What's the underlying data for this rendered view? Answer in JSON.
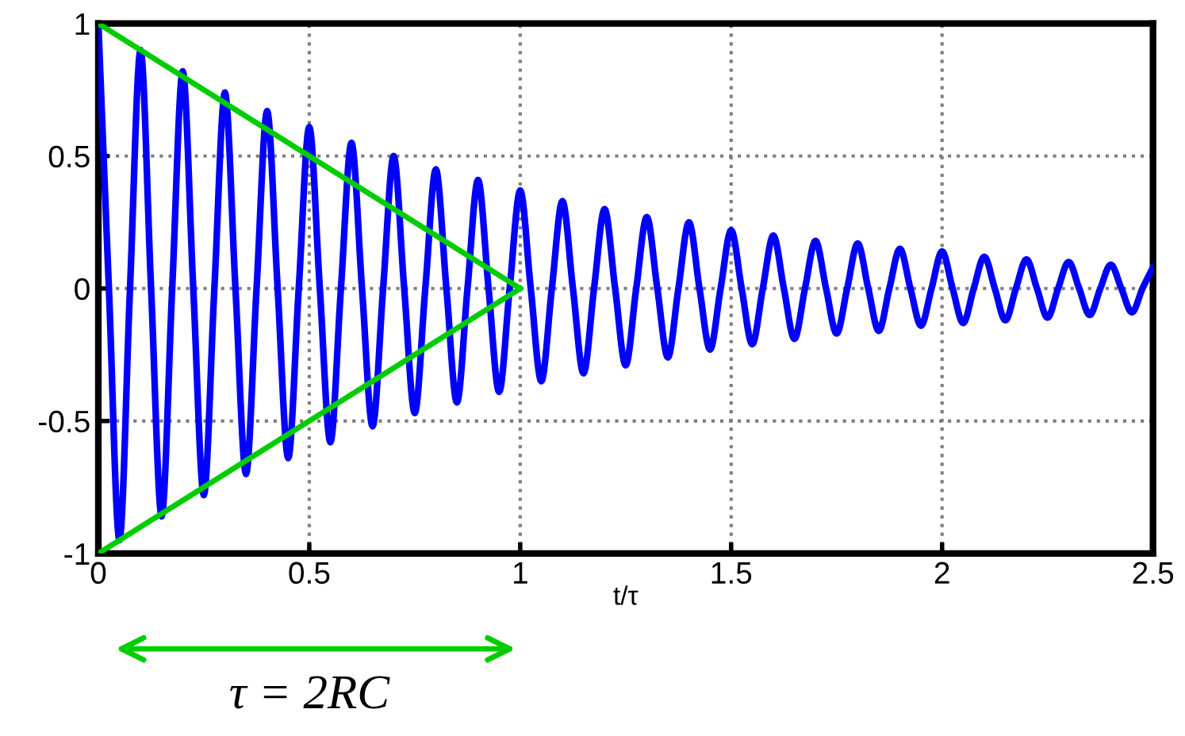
{
  "chart_data": {
    "type": "line",
    "xlabel": "t/τ",
    "annotations": [
      "τ = 2RC"
    ],
    "xlim": [
      0,
      2.5
    ],
    "ylim": [
      -1,
      1
    ],
    "xticks": [
      0,
      0.5,
      1,
      1.5,
      2,
      2.5
    ],
    "yticks": [
      -1,
      -0.5,
      0,
      0.5,
      1
    ],
    "grid": true,
    "line_style": "solid",
    "marker": "none",
    "series": [
      {
        "color": "#0000ff",
        "x": [
          0,
          0.025,
          0.05,
          0.075,
          0.1,
          0.125,
          0.15,
          0.175,
          0.2,
          0.225,
          0.25,
          0.275,
          0.3,
          0.325,
          0.35,
          0.375,
          0.4,
          0.425,
          0.45,
          0.475,
          0.5,
          0.525,
          0.55,
          0.575,
          0.6,
          0.625,
          0.65,
          0.675,
          0.7,
          0.725,
          0.75,
          0.775,
          0.8,
          0.825,
          0.85,
          0.875,
          0.9,
          0.925,
          0.95,
          0.975,
          1,
          1.025,
          1.05,
          1.075,
          1.1,
          1.125,
          1.15,
          1.175,
          1.2,
          1.225,
          1.25,
          1.275,
          1.3,
          1.325,
          1.35,
          1.375,
          1.4,
          1.425,
          1.45,
          1.475,
          1.5,
          1.525,
          1.55,
          1.575,
          1.6,
          1.625,
          1.65,
          1.675,
          1.7,
          1.725,
          1.75,
          1.775,
          1.8,
          1.825,
          1.85,
          1.875,
          1.9,
          1.925,
          1.95,
          1.975,
          2,
          2.025,
          2.05,
          2.075,
          2.1,
          2.125,
          2.15,
          2.175,
          2.2,
          2.225,
          2.25,
          2.275,
          2.3,
          2.325,
          2.35,
          2.375,
          2.4,
          2.425,
          2.45,
          2.475,
          2.5
        ],
        "values": [
          1,
          0,
          -0.95,
          0,
          0.9,
          0,
          -0.86,
          0,
          0.82,
          0,
          -0.78,
          0,
          0.74,
          0,
          -0.7,
          0,
          0.67,
          0,
          -0.64,
          0,
          0.61,
          0,
          -0.58,
          0,
          0.55,
          0,
          -0.52,
          0,
          0.5,
          0,
          -0.47,
          0,
          0.45,
          0,
          -0.43,
          0,
          0.41,
          0,
          -0.39,
          0,
          0.37,
          0,
          -0.35,
          0,
          0.33,
          0,
          -0.32,
          0,
          0.3,
          0,
          -0.29,
          0,
          0.27,
          0,
          -0.26,
          0,
          0.25,
          0,
          -0.23,
          0,
          0.22,
          0,
          -0.21,
          0,
          0.2,
          0,
          -0.19,
          0,
          0.18,
          0,
          -0.17,
          0,
          0.17,
          0,
          -0.16,
          0,
          0.15,
          0,
          -0.14,
          0,
          0.14,
          0,
          -0.13,
          0,
          0.12,
          0,
          -0.12,
          0,
          0.11,
          0,
          -0.11,
          0,
          0.1,
          0,
          -0.1,
          0,
          0.09,
          0,
          -0.09,
          0,
          0.08
        ]
      },
      {
        "color": "#00cc00",
        "x": [
          0,
          1
        ],
        "values": [
          1,
          0
        ]
      },
      {
        "color": "#00cc00",
        "x": [
          0,
          1
        ],
        "values": [
          -1,
          0
        ]
      }
    ]
  }
}
